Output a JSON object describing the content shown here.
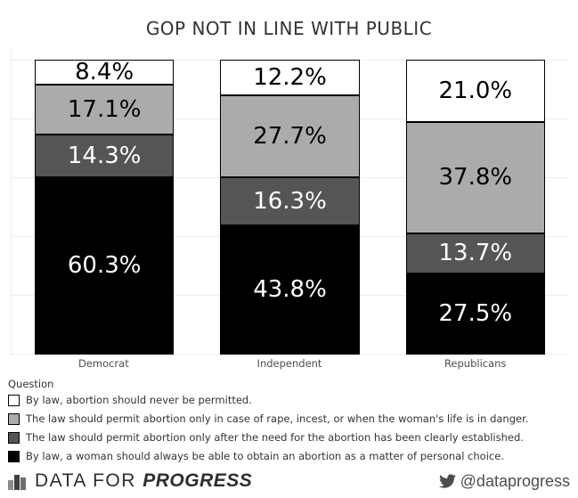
{
  "title": "GOP NOT IN LINE WITH PUBLIC",
  "chart_data": {
    "type": "bar",
    "stacked": true,
    "orientation": "vertical",
    "categories": [
      "Democrat",
      "Independent",
      "Republicans"
    ],
    "series": [
      {
        "name": "By law, abortion should never be permitted.",
        "color": "#ffffff",
        "label_color": "#000000",
        "values": [
          8.4,
          12.2,
          21.0
        ]
      },
      {
        "name": "The law should permit abortion only in case of rape, incest, or when the woman's life is in danger.",
        "color": "#ababab",
        "label_color": "#000000",
        "values": [
          17.1,
          27.7,
          37.8
        ]
      },
      {
        "name": "The law should permit abortion only after the need for the abortion has been clearly established.",
        "color": "#555555",
        "label_color": "#ffffff",
        "values": [
          14.3,
          16.3,
          13.7
        ]
      },
      {
        "name": "By law, a woman should always be able to obtain an abortion as a matter of personal choice.",
        "color": "#000000",
        "label_color": "#ffffff",
        "values": [
          60.3,
          43.8,
          27.5
        ]
      }
    ],
    "value_suffix": "%",
    "ylim": [
      0,
      100
    ],
    "grid": true,
    "gridline_interval": 20,
    "legend_title": "Question",
    "legend_position": "bottom-left"
  },
  "footer": {
    "brand_regular": "DATA FOR",
    "brand_bold": "PROGRESS",
    "twitter_handle": "@dataprogress"
  }
}
